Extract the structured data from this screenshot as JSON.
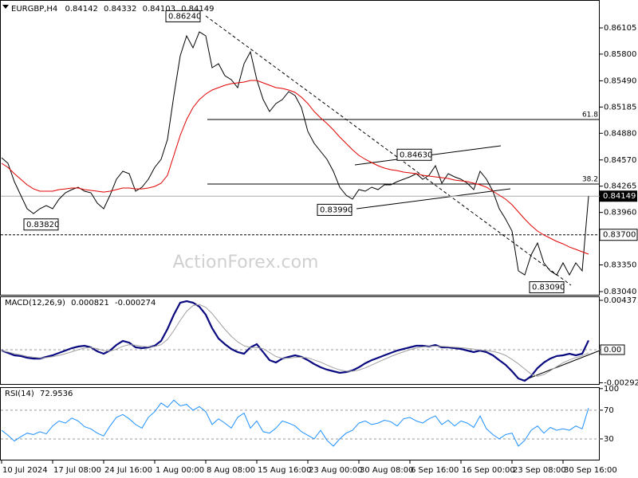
{
  "chart_data": [
    {
      "type": "line",
      "title": "EURGBP,H4",
      "last_bar": {
        "open": 0.84142,
        "high": 0.84332,
        "low": 0.84103
      },
      "watermark": "ActionForex.com",
      "series": [
        {
          "color": "#000000",
          "values": [
            0.84596,
            0.84531,
            0.84318,
            0.8416,
            0.84003,
            0.83947,
            0.84003,
            0.8404,
            0.84003,
            0.84114,
            0.84188,
            0.84225,
            0.84253,
            0.84207,
            0.84188,
            0.84068,
            0.84003,
            0.8416,
            0.84346,
            0.84438,
            0.8441,
            0.84207,
            0.84253,
            0.84346,
            0.84484,
            0.84577,
            0.84809,
            0.85318,
            0.85781,
            0.86012,
            0.85873,
            0.86059,
            0.86012,
            0.85642,
            0.85688,
            0.85549,
            0.85503,
            0.8541,
            0.85688,
            0.85827,
            0.85503,
            0.85272,
            0.85133,
            0.85225,
            0.85272,
            0.85364,
            0.85318,
            0.85179,
            0.84901,
            0.84762,
            0.8467,
            0.84577,
            0.84438,
            0.84253,
            0.8416,
            0.84114,
            0.84225,
            0.84207,
            0.84253,
            0.84225,
            0.84281,
            0.84281,
            0.84318,
            0.84346,
            0.84373,
            0.8441,
            0.84346,
            0.84392,
            0.84503,
            0.84299,
            0.8441,
            0.84373,
            0.84346,
            0.84299,
            0.84225,
            0.84438,
            0.84346,
            0.84207,
            0.84003,
            0.83883,
            0.83744,
            0.83281,
            0.83234,
            0.83466,
            0.83605,
            0.83373,
            0.83281,
            0.83234,
            0.83373,
            0.83234,
            0.83373,
            0.83281,
            0.84149
          ]
        },
        {
          "color": "#e00000",
          "values": [
            0.84531,
            0.84484,
            0.8441,
            0.84346,
            0.84281,
            0.84234,
            0.84207,
            0.84207,
            0.84207,
            0.84225,
            0.84234,
            0.84244,
            0.84244,
            0.84225,
            0.84216,
            0.84207,
            0.84197,
            0.84207,
            0.84225,
            0.84244,
            0.84244,
            0.84234,
            0.84234,
            0.84244,
            0.84262,
            0.84299,
            0.84392,
            0.84623,
            0.84855,
            0.8504,
            0.85179,
            0.85272,
            0.85336,
            0.85383,
            0.8541,
            0.85438,
            0.85457,
            0.85466,
            0.85475,
            0.85494,
            0.85494,
            0.85466,
            0.85438,
            0.8541,
            0.85401,
            0.85383,
            0.85355,
            0.85299,
            0.85225,
            0.85133,
            0.85059,
            0.84994,
            0.8492,
            0.84836,
            0.84762,
            0.84688,
            0.84623,
            0.84577,
            0.8454,
            0.84503,
            0.84475,
            0.84457,
            0.84447,
            0.84429,
            0.8442,
            0.8441,
            0.84392,
            0.84383,
            0.84373,
            0.84364,
            0.84355,
            0.84336,
            0.84327,
            0.84318,
            0.84299,
            0.84281,
            0.84253,
            0.84207,
            0.8416,
            0.84114,
            0.84049,
            0.83966,
            0.83883,
            0.83808,
            0.83744,
            0.83697,
            0.8366,
            0.83623,
            0.83595,
            0.83558,
            0.83531,
            0.83503,
            0.83475
          ]
        }
      ],
      "ylim": [
        0.83003,
        0.86429
      ],
      "yticks": [
        0.86105,
        {
          "value": 0.858,
          "label": "0.85800"
        },
        {
          "value": 0.8549,
          "label": "0.85490"
        },
        0.85185,
        {
          "value": 0.8488,
          "label": "0.84880"
        },
        {
          "value": 0.8457,
          "label": "0.84570"
        },
        0.84265,
        {
          "value": 0.8396,
          "label": "0.83960"
        },
        {
          "value": 0.8335,
          "label": "0.83350"
        },
        {
          "value": 0.8304,
          "label": "0.83040"
        }
      ],
      "swing_labels": [
        {
          "value": 0.8624,
          "label": "0.86240"
        },
        {
          "value": 0.8382,
          "label": "0.83820"
        },
        {
          "value": 0.8399,
          "label": "0.83990"
        },
        {
          "value": 0.8463,
          "label": "0.84630"
        },
        {
          "value": 0.8309,
          "label": "0.83090"
        }
      ],
      "fib_levels": [
        {
          "ratio": 61.8,
          "price": 0.8504
        },
        {
          "ratio": 38.2,
          "price": 0.8429
        }
      ],
      "level": {
        "value": 0.837,
        "label": "0.83700"
      }
    },
    {
      "type": "line",
      "title": "MACD(12,26,9)",
      "series": [
        {
          "color": "#0a0a80",
          "values": [
            -7e-05,
            -0.00028,
            -0.00049,
            -0.00056,
            -0.00071,
            -0.00078,
            -0.00078,
            -0.00063,
            -0.00049,
            -0.00028,
            -7e-05,
            0.00014,
            0.00028,
            0.00035,
            0.00021,
            -0.00014,
            -0.00035,
            -7e-05,
            0.00042,
            0.00078,
            0.00063,
            0.00021,
            0.00014,
            0.00021,
            0.00035,
            0.00078,
            0.00183,
            0.0031,
            0.00416,
            0.0043,
            0.00416,
            0.00381,
            0.0031,
            0.0019,
            0.00099,
            0.00049,
            7e-05,
            -0.00021,
            -0.00035,
            0.00021,
            0.00049,
            -0.00021,
            -0.00092,
            -0.00113,
            -0.00078,
            -0.00063,
            -0.00049,
            -0.00063,
            -0.00092,
            -0.00127,
            -0.00155,
            -0.00176,
            -0.0019,
            -0.00204,
            -0.00197,
            -0.00183,
            -0.00155,
            -0.0012,
            -0.00092,
            -0.00071,
            -0.00049,
            -0.00028,
            -7e-05,
            7e-05,
            0.00021,
            0.00035,
            0.00035,
            0.00028,
            0.00042,
            0.00021,
            0.00021,
            0.00014,
            7e-05,
            -7e-05,
            -0.00021,
            -7e-05,
            -0.00021,
            -0.00049,
            -0.00092,
            -0.00134,
            -0.0019,
            -0.00254,
            -0.00275,
            -0.00233,
            -0.00162,
            -0.00113,
            -0.00078,
            -0.00056,
            -0.00049,
            -0.00035,
            -0.00049,
            -0.00035,
            0.000821
          ]
        },
        {
          "color": "#a0a0a0",
          "values": [
            -0.0001,
            -0.0002,
            -0.00035,
            -0.00045,
            -0.00058,
            -0.00066,
            -0.00072,
            -0.0007,
            -0.00062,
            -0.0005,
            -0.00035,
            -0.00018,
            0.0,
            0.00015,
            0.0002,
            0.0001,
            -8e-05,
            -0.00012,
            5e-05,
            0.0003,
            0.00045,
            0.0004,
            0.0003,
            0.00025,
            0.00028,
            0.00045,
            0.0009,
            0.0017,
            0.0026,
            0.0034,
            0.0039,
            0.004,
            0.00375,
            0.0032,
            0.0025,
            0.0018,
            0.0012,
            0.0007,
            0.00035,
            0.0002,
            0.0002,
            0.0001,
            -0.00025,
            -0.0006,
            -0.00075,
            -0.00075,
            -0.00068,
            -0.00066,
            -0.00072,
            -0.0009,
            -0.0011,
            -0.00135,
            -0.0016,
            -0.00178,
            -0.00188,
            -0.0019,
            -0.0018,
            -0.0016,
            -0.00135,
            -0.0011,
            -0.00085,
            -0.0006,
            -0.00038,
            -0.00018,
            0.0,
            0.00015,
            0.00025,
            0.0003,
            0.00032,
            0.0003,
            0.00026,
            0.00022,
            0.00018,
            0.00012,
            5e-05,
            -3e-05,
            -8e-05,
            -0.00015,
            -0.00028,
            -0.0005,
            -0.00085,
            -0.00125,
            -0.0017,
            -0.00215,
            -0.00235,
            -0.0022,
            -0.00185,
            -0.0015,
            -0.00115,
            -0.0009,
            -0.0007,
            -0.00055,
            -0.000274
          ]
        }
      ],
      "ylim": [
        -0.0031,
        0.00472
      ],
      "yticks": [
        0.00437,
        {
          "value": 0,
          "label": "0.00"
        },
        -0.002922
      ]
    },
    {
      "type": "line",
      "title": "RSI(14)",
      "series": [
        {
          "color": "#1e90ff",
          "values": [
            42,
            35,
            27,
            33,
            38,
            36,
            40,
            37,
            48,
            55,
            52,
            59,
            55,
            47,
            44,
            38,
            34,
            48,
            60,
            64,
            58,
            50,
            45,
            60,
            68,
            80,
            74,
            84,
            76,
            78,
            70,
            75,
            68,
            50,
            58,
            52,
            45,
            60,
            66,
            45,
            55,
            40,
            38,
            45,
            55,
            52,
            48,
            40,
            35,
            30,
            42,
            28,
            20,
            30,
            38,
            42,
            52,
            55,
            50,
            52,
            56,
            54,
            48,
            58,
            60,
            55,
            52,
            58,
            62,
            50,
            56,
            48,
            55,
            52,
            46,
            62,
            44,
            36,
            30,
            36,
            38,
            20,
            28,
            42,
            48,
            38,
            46,
            42,
            44,
            42,
            48,
            44,
            72.9536
          ]
        }
      ],
      "ylim": [
        0,
        102
      ],
      "yticks": [
        100,
        70,
        30
      ],
      "categories": [
        "10 Jul 2024",
        null,
        null,
        null,
        null,
        null,
        null,
        null,
        "17 Jul 08:00",
        null,
        null,
        null,
        null,
        null,
        null,
        null,
        "24 Jul 16:00",
        null,
        null,
        null,
        null,
        null,
        null,
        null,
        "1 Aug 00:00",
        null,
        null,
        null,
        null,
        null,
        null,
        null,
        "8 Aug 08:00",
        null,
        null,
        null,
        null,
        null,
        null,
        null,
        "15 Aug 16:00",
        null,
        null,
        null,
        null,
        null,
        null,
        null,
        "23 Aug 00:00",
        null,
        null,
        null,
        null,
        null,
        null,
        null,
        "30 Aug 08:00",
        null,
        null,
        null,
        null,
        null,
        null,
        null,
        "6 Sep 16:00",
        null,
        null,
        null,
        null,
        null,
        null,
        null,
        "16 Sep 00:00",
        null,
        null,
        null,
        null,
        null,
        null,
        null,
        "23 Sep 08:00",
        null,
        null,
        null,
        null,
        null,
        null,
        null,
        "30 Sep 16:00",
        null,
        null,
        null,
        null
      ]
    }
  ]
}
